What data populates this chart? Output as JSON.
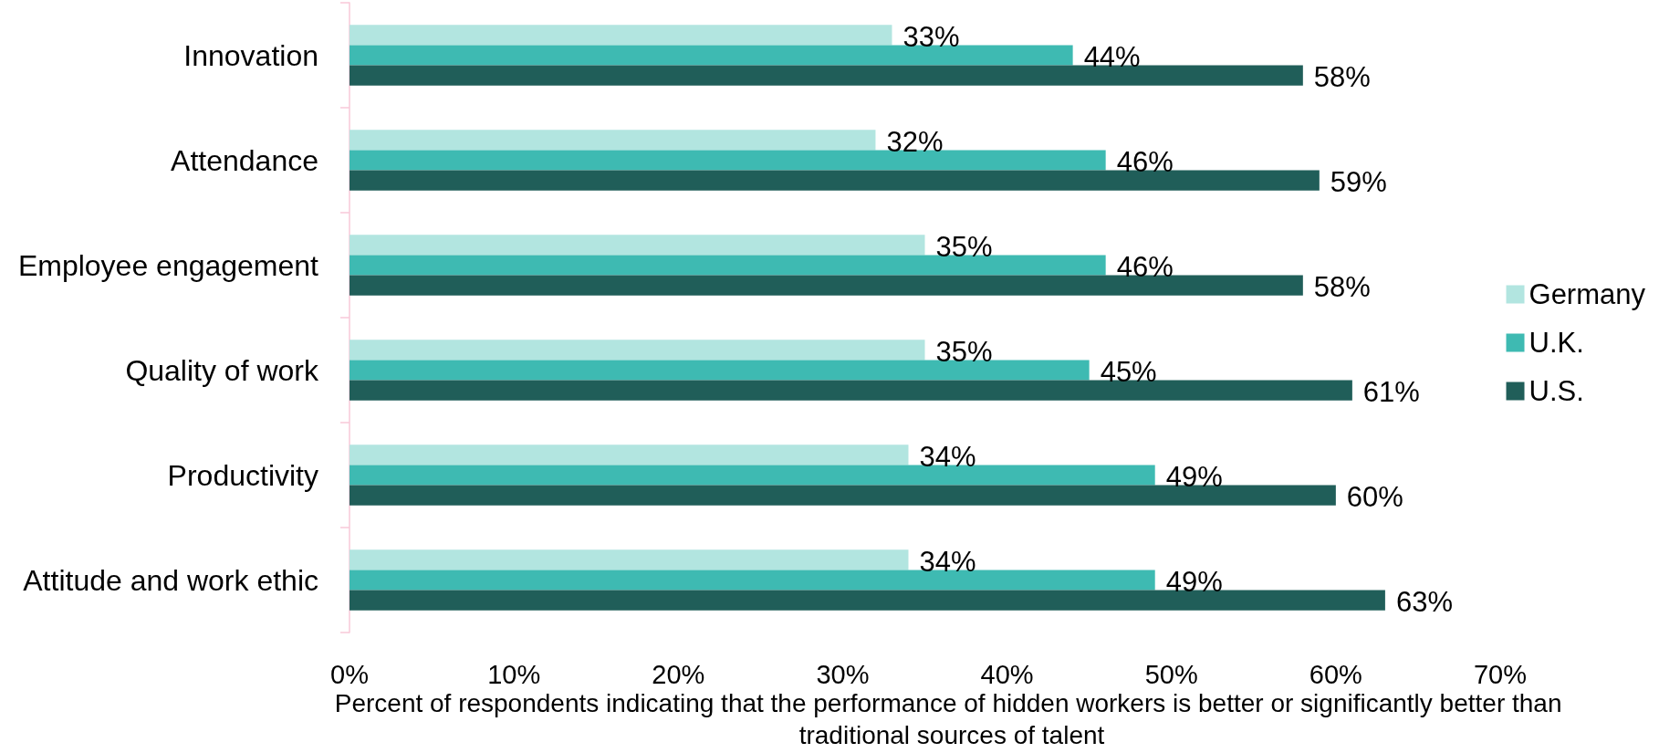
{
  "chart_data": {
    "type": "bar",
    "orientation": "horizontal",
    "categories": [
      "Innovation",
      "Attendance",
      "Employee engagement",
      "Quality of work",
      "Productivity",
      "Attitude and work ethic"
    ],
    "series": [
      {
        "name": "Germany",
        "color": "#b2e5e0",
        "values": [
          33,
          32,
          35,
          35,
          34,
          34
        ],
        "value_labels": [
          "33%",
          "32%",
          "35%",
          "35%",
          "34%",
          "34%"
        ]
      },
      {
        "name": "U.K.",
        "color": "#3ebab2",
        "values": [
          44,
          46,
          46,
          45,
          49,
          49
        ],
        "value_labels": [
          "44%",
          "46%",
          "46%",
          "45%",
          "49%",
          "49%"
        ]
      },
      {
        "name": "U.S.",
        "color": "#205e59",
        "values": [
          58,
          59,
          58,
          61,
          60,
          63
        ],
        "value_labels": [
          "58%",
          "59%",
          "58%",
          "61%",
          "60%",
          "63%"
        ]
      }
    ],
    "xlabel": "Percent of respondents indicating that the performance of hidden workers is better or significantly better than traditional sources of talent",
    "xlim": [
      0,
      70
    ],
    "xticks": [
      {
        "value": 0,
        "label": "0%"
      },
      {
        "value": 10,
        "label": "10%"
      },
      {
        "value": 20,
        "label": "20%"
      },
      {
        "value": 30,
        "label": "30%"
      },
      {
        "value": 40,
        "label": "40%"
      },
      {
        "value": 50,
        "label": "50%"
      },
      {
        "value": 60,
        "label": "60%"
      },
      {
        "value": 70,
        "label": "70%"
      }
    ],
    "grid": false,
    "legend": "right"
  }
}
